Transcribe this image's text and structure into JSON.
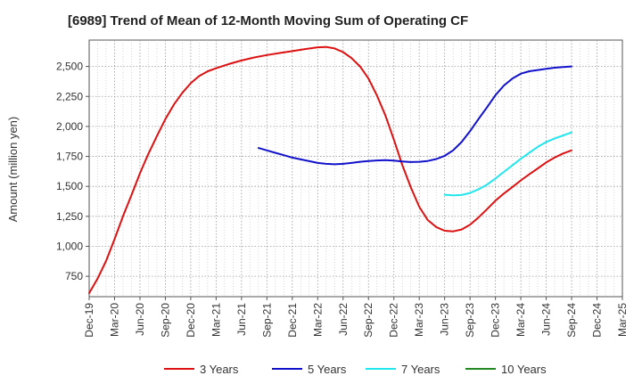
{
  "chart_data": {
    "type": "line",
    "title": "[6989]  Trend of Mean of 12-Month Moving Sum of Operating CF",
    "xlabel": "",
    "ylabel": "Amount (million yen)",
    "ylim": [
      580,
      2720
    ],
    "yticks": [
      750,
      1000,
      1250,
      1500,
      1750,
      2000,
      2250,
      2500
    ],
    "ytick_labels": [
      "750",
      "1,000",
      "1,250",
      "1,500",
      "1,750",
      "2,000",
      "2,250",
      "2,500"
    ],
    "x_ticks": [
      "Dec-19",
      "Mar-20",
      "Jun-20",
      "Sep-20",
      "Dec-20",
      "Mar-21",
      "Jun-21",
      "Sep-21",
      "Dec-21",
      "Mar-22",
      "Jun-22",
      "Sep-22",
      "Dec-22",
      "Mar-23",
      "Jun-23",
      "Sep-23",
      "Dec-23",
      "Mar-24",
      "Jun-24",
      "Sep-24",
      "Dec-24",
      "Mar-25"
    ],
    "grid": true,
    "legend_position": "bottom",
    "series": [
      {
        "name": "3 Years",
        "color": "#dd1111",
        "x": [
          0,
          0.33,
          0.67,
          1,
          1.33,
          1.67,
          2,
          2.33,
          2.67,
          3,
          3.33,
          3.67,
          4,
          4.33,
          4.67,
          5,
          5.5,
          6,
          6.5,
          7,
          7.5,
          8,
          8.5,
          9,
          9.33,
          9.67,
          10,
          10.33,
          10.67,
          11,
          11.33,
          11.67,
          12,
          12.33,
          12.67,
          13,
          13.33,
          13.67,
          14,
          14.33,
          14.67,
          15,
          15.33,
          15.67,
          16,
          16.33,
          16.67,
          17,
          17.33,
          17.67,
          18,
          18.33,
          18.67,
          19
        ],
        "values": [
          610,
          730,
          880,
          1060,
          1250,
          1430,
          1610,
          1770,
          1920,
          2060,
          2180,
          2280,
          2360,
          2420,
          2460,
          2485,
          2520,
          2550,
          2575,
          2595,
          2612,
          2628,
          2645,
          2660,
          2663,
          2650,
          2620,
          2570,
          2500,
          2400,
          2260,
          2090,
          1890,
          1680,
          1490,
          1330,
          1220,
          1160,
          1130,
          1125,
          1140,
          1180,
          1240,
          1310,
          1380,
          1440,
          1495,
          1550,
          1600,
          1650,
          1700,
          1740,
          1775,
          1800
        ]
      },
      {
        "name": "5 Years",
        "color": "#1111cc",
        "x": [
          6.67,
          7,
          7.33,
          7.67,
          8,
          8.33,
          8.67,
          9,
          9.33,
          9.67,
          10,
          10.33,
          10.67,
          11,
          11.33,
          11.67,
          12,
          12.33,
          12.67,
          13,
          13.33,
          13.67,
          14,
          14.33,
          14.67,
          15,
          15.33,
          15.67,
          16,
          16.33,
          16.67,
          17,
          17.33,
          17.67,
          18,
          18.33,
          18.67,
          19
        ],
        "values": [
          1820,
          1800,
          1780,
          1760,
          1740,
          1725,
          1710,
          1695,
          1688,
          1684,
          1688,
          1695,
          1705,
          1712,
          1716,
          1718,
          1715,
          1708,
          1703,
          1705,
          1712,
          1728,
          1755,
          1800,
          1870,
          1960,
          2060,
          2160,
          2260,
          2340,
          2400,
          2440,
          2460,
          2470,
          2480,
          2490,
          2495,
          2500
        ]
      },
      {
        "name": "7 Years",
        "color": "#22e6ee",
        "x": [
          14,
          14.33,
          14.67,
          15,
          15.33,
          15.67,
          16,
          16.33,
          16.67,
          17,
          17.33,
          17.67,
          18,
          18.33,
          18.67,
          19
        ],
        "values": [
          1430,
          1425,
          1428,
          1445,
          1475,
          1515,
          1565,
          1620,
          1675,
          1730,
          1780,
          1830,
          1870,
          1900,
          1925,
          1950
        ]
      },
      {
        "name": "10 Years",
        "color": "#228822",
        "x": [],
        "values": []
      }
    ]
  }
}
